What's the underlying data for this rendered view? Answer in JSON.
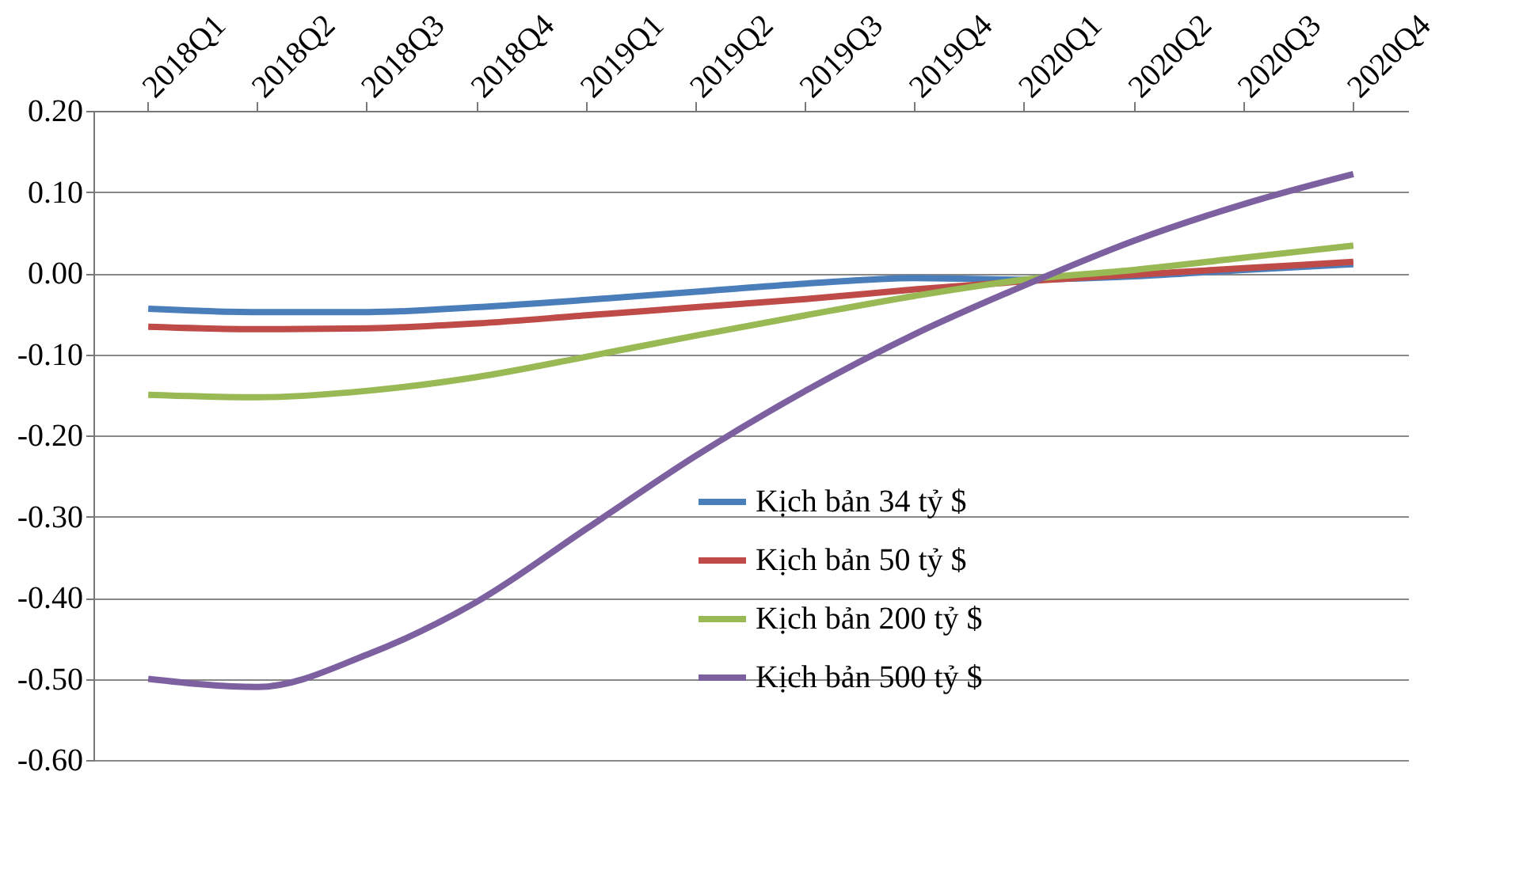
{
  "chart_data": {
    "type": "line",
    "categories": [
      "2018Q1",
      "2018Q2",
      "2018Q3",
      "2018Q4",
      "2019Q1",
      "2019Q2",
      "2019Q3",
      "2019Q4",
      "2020Q1",
      "2020Q2",
      "2020Q3",
      "2020Q4"
    ],
    "ylim": [
      -0.6,
      0.2
    ],
    "yticks": [
      {
        "value": -0.6,
        "label": "-0.60"
      },
      {
        "value": -0.5,
        "label": "-0.50"
      },
      {
        "value": -0.4,
        "label": "-0.40"
      },
      {
        "value": -0.3,
        "label": "-0.30"
      },
      {
        "value": -0.2,
        "label": "-0.20"
      },
      {
        "value": -0.1,
        "label": "-0.10"
      },
      {
        "value": 0,
        "label": "0.00"
      },
      {
        "value": 0.1,
        "label": "0.10"
      },
      {
        "value": 0.2,
        "label": "0.20"
      }
    ],
    "grid": "y",
    "legend": "bottom",
    "marker": "none",
    "line_style": "solid",
    "series": [
      {
        "name": "Kịch bản 34 tỷ $",
        "color": "#4a7ebb",
        "values": [
          -0.044,
          -0.048,
          -0.048,
          -0.042,
          -0.033,
          -0.023,
          -0.013,
          -0.006,
          -0.008,
          -0.004,
          0.004,
          0.011
        ]
      },
      {
        "name": "Kịch bản 50 tỷ $",
        "color": "#be4b48",
        "values": [
          -0.066,
          -0.069,
          -0.068,
          -0.062,
          -0.052,
          -0.042,
          -0.032,
          -0.02,
          -0.01,
          -0.002,
          0.006,
          0.014
        ]
      },
      {
        "name": "Kịch bản 200 tỷ $",
        "color": "#98b954",
        "values": [
          -0.15,
          -0.153,
          -0.145,
          -0.128,
          -0.103,
          -0.077,
          -0.052,
          -0.028,
          -0.008,
          0.004,
          0.019,
          0.034
        ]
      },
      {
        "name": "Kịch bản 500 tỷ $",
        "color": "#7d60a0",
        "values": [
          -0.5,
          -0.51,
          -0.47,
          -0.405,
          -0.315,
          -0.225,
          -0.145,
          -0.075,
          -0.015,
          0.04,
          0.085,
          0.122
        ]
      }
    ]
  }
}
